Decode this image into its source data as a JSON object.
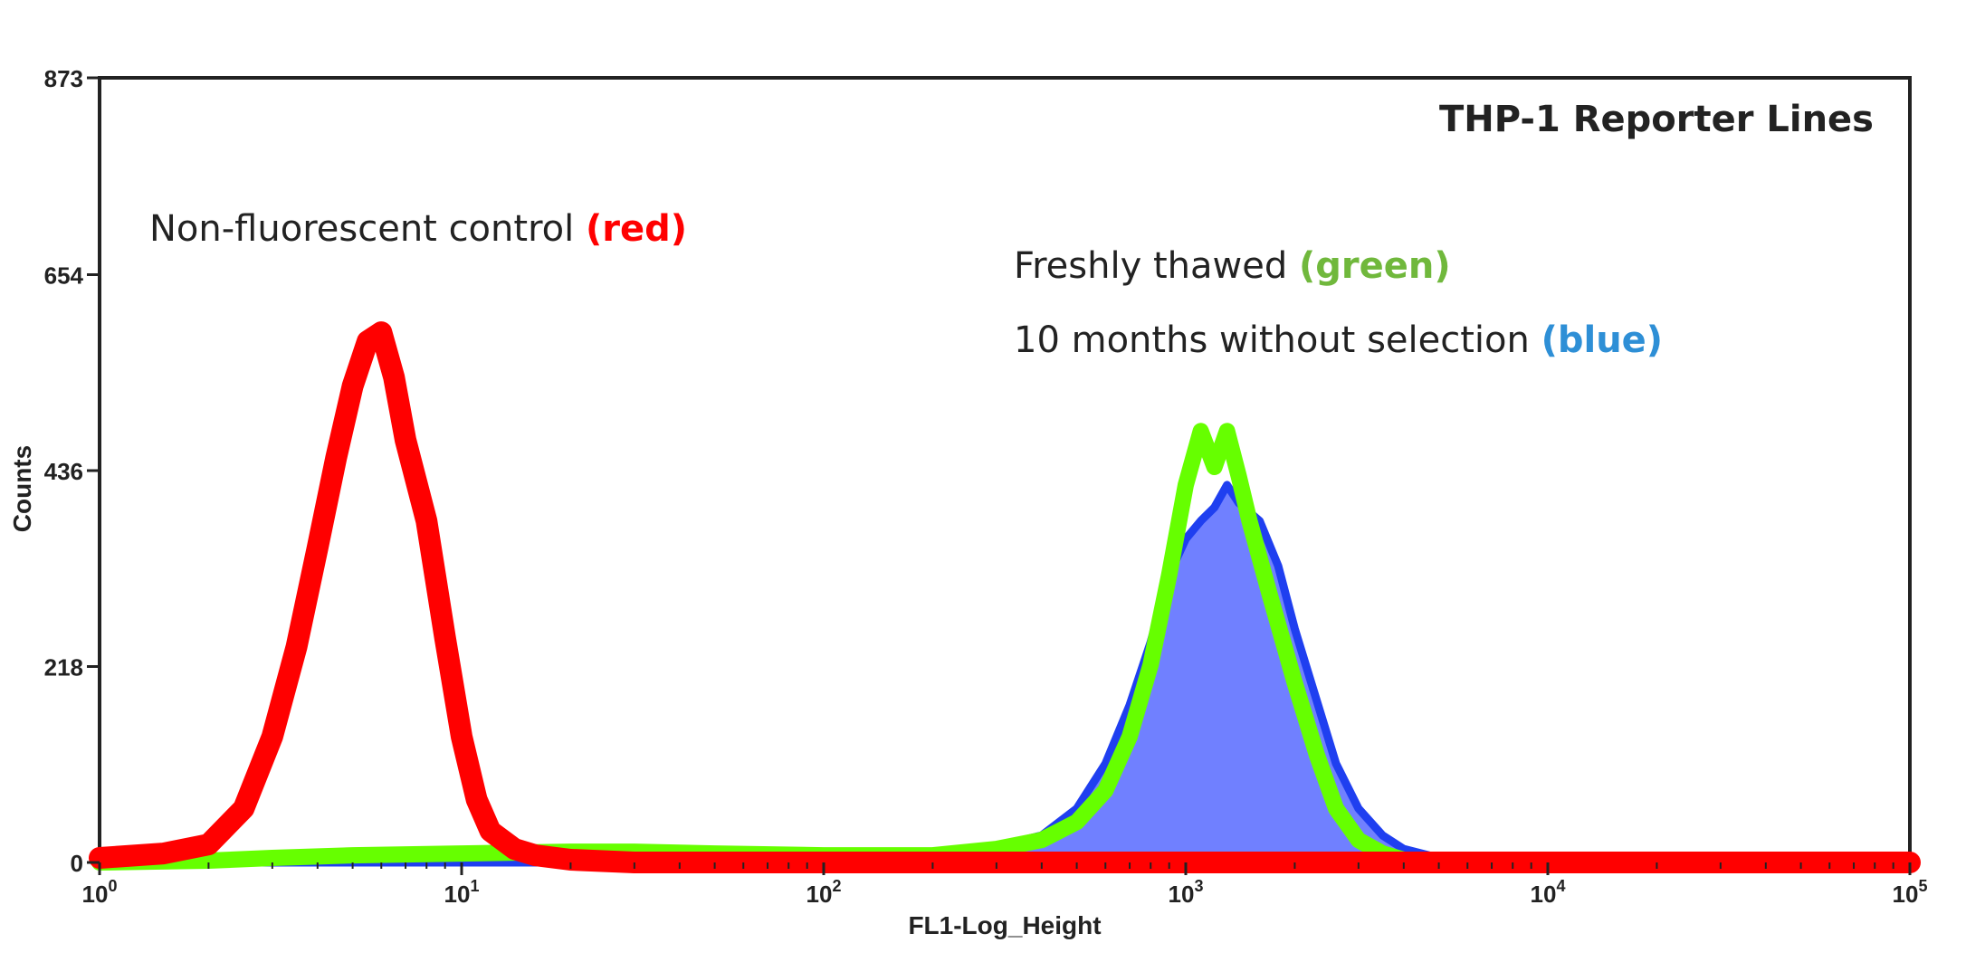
{
  "chart_data": {
    "type": "area",
    "title": "THP-1 Reporter Lines",
    "xlabel": "FL1-Log_Height",
    "ylabel": "Counts",
    "xscale": "log10",
    "xlim": [
      1,
      100000
    ],
    "ylim": [
      0,
      873
    ],
    "y_ticks": [
      "0",
      "218",
      "436",
      "654",
      "873"
    ],
    "y_tick_values": [
      0,
      218,
      436,
      654,
      873
    ],
    "x_tick_values": [
      1,
      10,
      100,
      1000,
      10000,
      100000
    ],
    "x_tick_bases": [
      "10",
      "10",
      "10",
      "10",
      "10",
      "10"
    ],
    "x_tick_exps": [
      "0",
      "1",
      "2",
      "3",
      "4",
      "5"
    ],
    "legend": {
      "red_text": "Non-fluorescent control ",
      "red_label": "(red)",
      "green_text": "Freshly thawed ",
      "green_label": "(green)",
      "blue_text": "10 months without selection ",
      "blue_label": "(blue)"
    },
    "colors": {
      "red": "#ff0000",
      "green": "#66ff00",
      "blue_edge": "#1f3ff0",
      "blue_fill": "#7080ff",
      "label_green": "#70b83c",
      "label_blue": "#2e8fd6"
    },
    "series": [
      {
        "name": "10 months without selection",
        "color": "blue",
        "x": [
          1,
          100,
          200,
          300,
          400,
          500,
          600,
          700,
          800,
          900,
          1000,
          1100,
          1200,
          1300,
          1400,
          1600,
          1800,
          2000,
          2300,
          2600,
          3000,
          3500,
          4000,
          5000,
          6000,
          7000,
          100000
        ],
        "y": [
          0,
          5,
          10,
          18,
          30,
          60,
          110,
          175,
          245,
          320,
          360,
          380,
          395,
          420,
          400,
          380,
          330,
          260,
          180,
          110,
          60,
          30,
          15,
          5,
          2,
          0,
          0
        ]
      },
      {
        "name": "Freshly thawed",
        "color": "green",
        "x": [
          1,
          2,
          3,
          5,
          10,
          20,
          30,
          50,
          100,
          200,
          300,
          400,
          500,
          600,
          700,
          800,
          900,
          1000,
          1100,
          1200,
          1300,
          1400,
          1500,
          1700,
          2000,
          2300,
          2600,
          3000,
          3500,
          4000,
          100000
        ],
        "y": [
          0,
          2,
          5,
          8,
          10,
          12,
          12,
          10,
          8,
          8,
          15,
          25,
          45,
          80,
          140,
          220,
          320,
          420,
          480,
          440,
          480,
          430,
          380,
          300,
          200,
          120,
          60,
          25,
          10,
          3,
          0
        ]
      },
      {
        "name": "Non-fluorescent control",
        "color": "red",
        "x": [
          1,
          1.5,
          2,
          2.5,
          3,
          3.5,
          4,
          4.5,
          5,
          5.5,
          6,
          6.5,
          7,
          8,
          9,
          10,
          11,
          12,
          14,
          16,
          20,
          30,
          100000
        ],
        "y": [
          5,
          10,
          20,
          60,
          140,
          240,
          350,
          450,
          530,
          580,
          590,
          540,
          470,
          380,
          250,
          140,
          70,
          35,
          15,
          8,
          3,
          0,
          0
        ]
      }
    ]
  }
}
